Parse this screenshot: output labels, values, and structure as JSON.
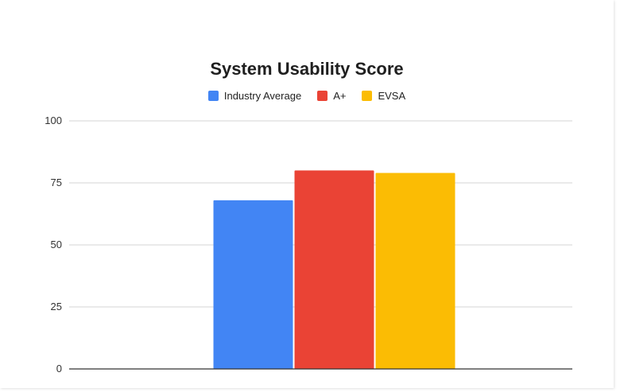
{
  "chart_data": {
    "type": "bar",
    "title": "System Usability Score",
    "xlabel": "",
    "ylabel": "",
    "categories": [
      ""
    ],
    "series": [
      {
        "name": "Industry Average",
        "values": [
          68
        ],
        "color": "#4285F4"
      },
      {
        "name": "A+",
        "values": [
          80
        ],
        "color": "#EA4335"
      },
      {
        "name": "EVSA",
        "values": [
          79
        ],
        "color": "#FBBC04"
      }
    ],
    "ylim": [
      0,
      100
    ],
    "yticks": [
      "0",
      "25",
      "50",
      "75",
      "100"
    ],
    "grid": true,
    "legend": "top-center"
  }
}
